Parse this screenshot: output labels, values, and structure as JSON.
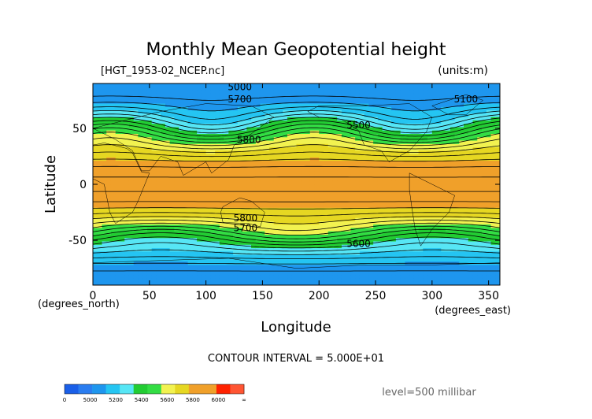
{
  "chart_data": {
    "type": "heatmap",
    "title": "Monthly Mean Geopotential height",
    "file_label": "[HGT_1953-02_NCEP.nc]",
    "units_label": "(units:m)",
    "xlabel": "Longitude",
    "ylabel": "Latitude",
    "x_unit_label": "(degrees_east)",
    "y_unit_label": "(degrees_north)",
    "xlim": [
      0,
      360
    ],
    "ylim": [
      -90,
      90
    ],
    "x_ticks": [
      0,
      50,
      100,
      150,
      200,
      250,
      300,
      350
    ],
    "y_ticks": [
      50,
      0,
      -50
    ],
    "contour_interval_text": "CONTOUR INTERVAL = 5.000E+01",
    "level_text": "level=500 millibar",
    "colorbar": {
      "tick_labels": [
        "0",
        "5000",
        "5200",
        "5400",
        "5600",
        "5800",
        "6000",
        "∞"
      ],
      "bands": [
        {
          "from": 0,
          "to": 5000,
          "color": "#1a5fe8"
        },
        {
          "from": 5000,
          "to": 5100,
          "color": "#2a7df0"
        },
        {
          "from": 5100,
          "to": 5200,
          "color": "#1e96ee"
        },
        {
          "from": 5200,
          "to": 5300,
          "color": "#25c5f2"
        },
        {
          "from": 5300,
          "to": 5400,
          "color": "#57e6f5"
        },
        {
          "from": 5400,
          "to": 5500,
          "color": "#22cc33"
        },
        {
          "from": 5500,
          "to": 5600,
          "color": "#33dd44"
        },
        {
          "from": 5600,
          "to": 5700,
          "color": "#f2f250"
        },
        {
          "from": 5700,
          "to": 5800,
          "color": "#e6d722"
        },
        {
          "from": 5800,
          "to": 5900,
          "color": "#f0a02a"
        },
        {
          "from": 5900,
          "to": 6000,
          "color": "#f0a02a"
        },
        {
          "from": 6000,
          "to": 6100,
          "color": "#ff2200"
        },
        {
          "from": 6100,
          "to": 99999,
          "color": "#ff5533"
        }
      ]
    },
    "contour_labels": [
      {
        "text": "5000",
        "lon": 130,
        "lat": 84
      },
      {
        "text": "5100",
        "lon": 330,
        "lat": 73
      },
      {
        "text": "5700",
        "lon": 130,
        "lat": 73
      },
      {
        "text": "5500",
        "lon": 235,
        "lat": 50
      },
      {
        "text": "5800",
        "lon": 138,
        "lat": 37
      },
      {
        "text": "5800",
        "lon": 135,
        "lat": -33
      },
      {
        "text": "5700",
        "lon": 135,
        "lat": -42
      },
      {
        "text": "5600",
        "lon": 235,
        "lat": -56
      }
    ]
  }
}
